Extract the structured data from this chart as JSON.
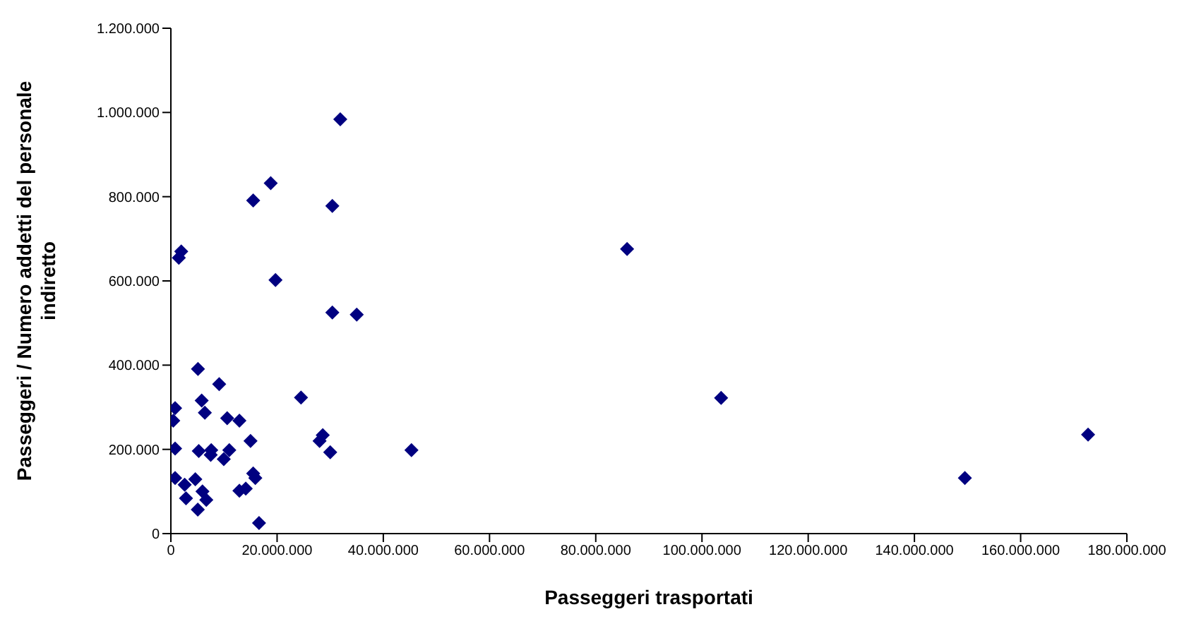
{
  "chart_data": {
    "type": "scatter",
    "xlabel": "Passeggeri trasportati",
    "ylabel": "Passeggeri / Numero addetti del personale indiretto",
    "marker": "diamond",
    "grid": false,
    "legend": false,
    "xlim": [
      0,
      180000000
    ],
    "ylim": [
      0,
      1200000
    ],
    "xticks": [
      {
        "value": 0,
        "label": "0"
      },
      {
        "value": 20000000,
        "label": "20.000.000"
      },
      {
        "value": 40000000,
        "label": "40.000.000"
      },
      {
        "value": 60000000,
        "label": "60.000.000"
      },
      {
        "value": 80000000,
        "label": "80.000.000"
      },
      {
        "value": 100000000,
        "label": "100.000.000"
      },
      {
        "value": 120000000,
        "label": "120.000.000"
      },
      {
        "value": 140000000,
        "label": "140.000.000"
      },
      {
        "value": 160000000,
        "label": "160.000.000"
      },
      {
        "value": 180000000,
        "label": "180.000.000"
      }
    ],
    "yticks": [
      {
        "value": 0,
        "label": "0"
      },
      {
        "value": 200000,
        "label": "200.000"
      },
      {
        "value": 400000,
        "label": "400.000"
      },
      {
        "value": 600000,
        "label": "600.000"
      },
      {
        "value": 800000,
        "label": "800.000"
      },
      {
        "value": 1000000,
        "label": "1.000.000"
      },
      {
        "value": 1200000,
        "label": "1.200.000"
      }
    ],
    "series": [
      {
        "color": "#000080",
        "x": [
          5100000,
          9100000,
          800000,
          450000,
          5800000,
          6400000,
          10600000,
          12900000,
          24500000,
          15000000,
          800000,
          5250000,
          7600000,
          11000000,
          9960000,
          28600000,
          28000000,
          30000000,
          45300000,
          800000,
          2600000,
          4600000,
          2850000,
          5950000,
          6670000,
          5070000,
          12900000,
          14100000,
          15500000,
          15900000,
          16600000,
          7500000,
          31900000,
          18800000,
          15500000,
          30400000,
          1950000,
          1500000,
          19700000,
          30400000,
          35000000,
          85900000,
          103600000,
          149500000,
          172700000
        ],
        "values": [
          391000,
          355000,
          298000,
          268000,
          316000,
          287000,
          274000,
          268000,
          323000,
          220000,
          202000,
          196000,
          198000,
          198000,
          177000,
          234000,
          220000,
          193000,
          198000,
          132000,
          116000,
          129000,
          84000,
          100000,
          80000,
          57000,
          102000,
          107000,
          143000,
          132000,
          25000,
          187000,
          984000,
          832000,
          791000,
          778000,
          670000,
          655000,
          602000,
          525000,
          520000,
          676000,
          322000,
          132000,
          235000
        ]
      }
    ]
  }
}
